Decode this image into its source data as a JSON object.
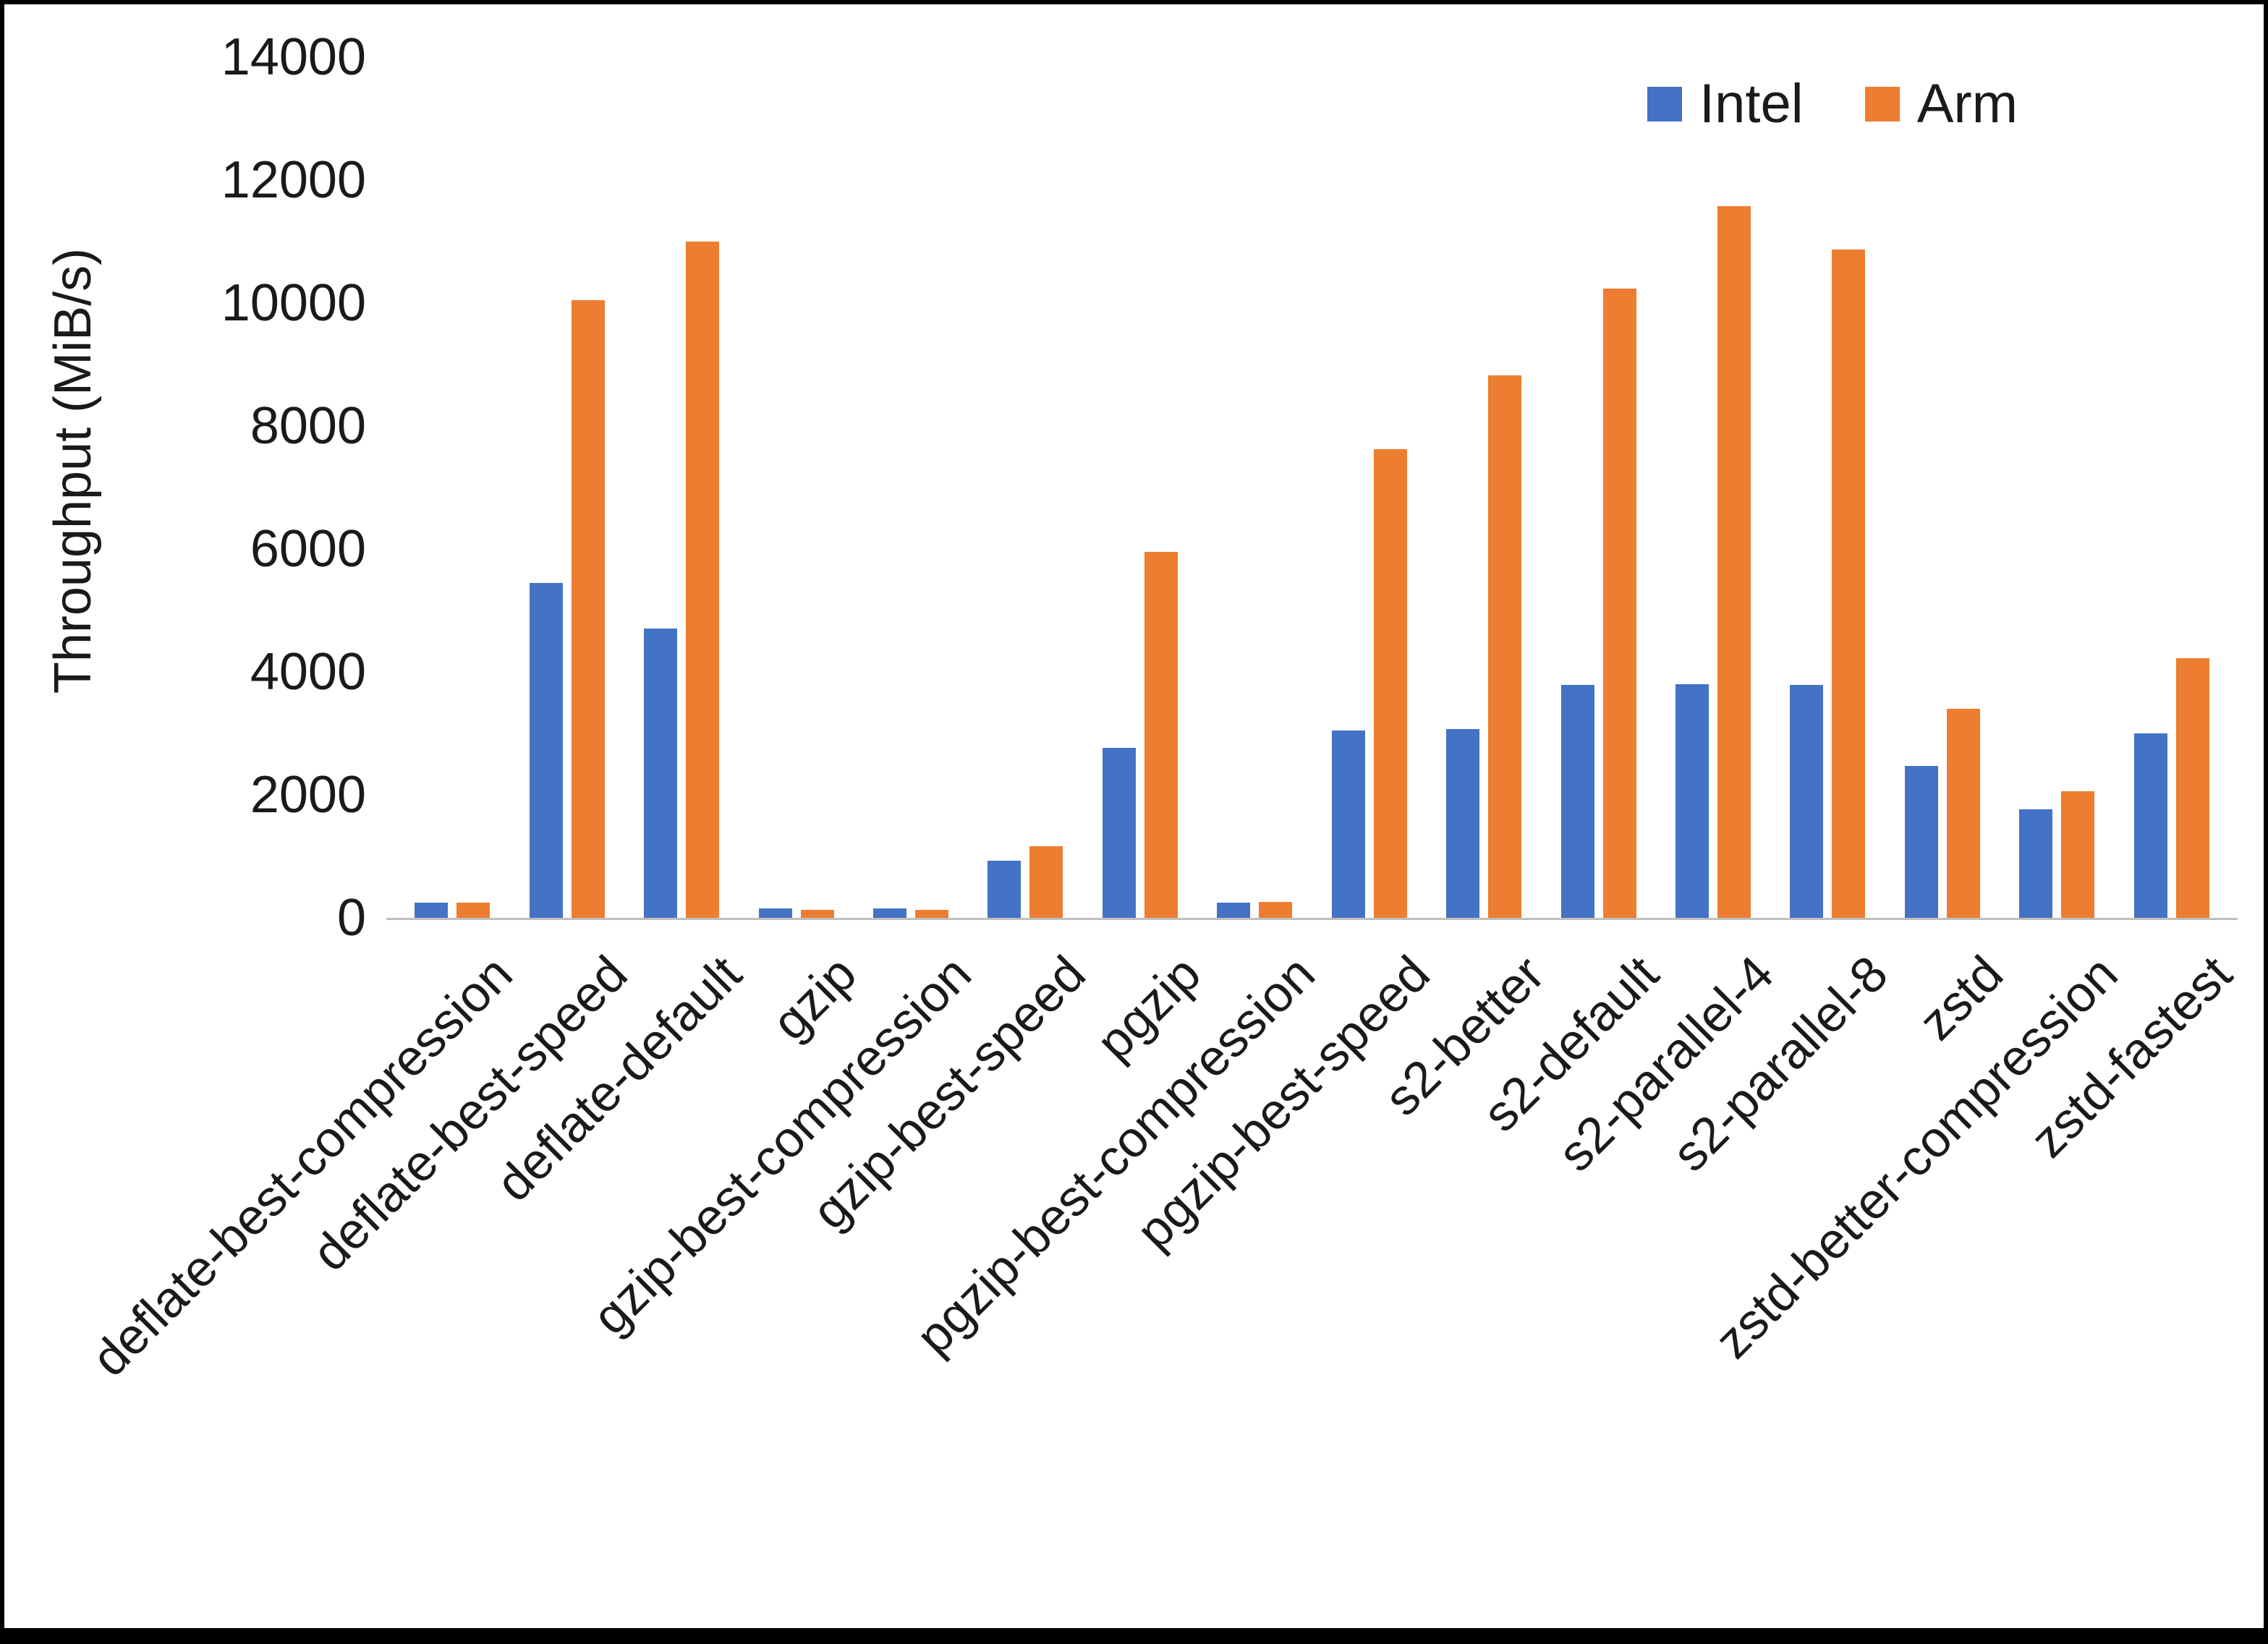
{
  "chart_data": {
    "type": "bar",
    "title": "",
    "xlabel": "",
    "ylabel": "Throughput (MiB/s)",
    "ylim": [
      0,
      14000
    ],
    "ytick_interval": 2000,
    "grid": false,
    "legend_position": "top-right",
    "axis_line_color": "#bfbfbf",
    "categories": [
      "deflate-best-compression",
      "deflate-best-speed",
      "deflate-default",
      "gzip",
      "gzip-best-compression",
      "gzip-best-speed",
      "pgzip",
      "pgzip-best-compression",
      "pgzip-best-speed",
      "s2-better",
      "s2-default",
      "s2-parallel-4",
      "s2-parallel-8",
      "zstd",
      "zstd-better-compression",
      "zstd-fastest"
    ],
    "series": [
      {
        "name": "Intel",
        "color": "#4472C4",
        "values": [
          250,
          5450,
          4700,
          150,
          150,
          930,
          2770,
          250,
          3050,
          3070,
          3790,
          3800,
          3790,
          2470,
          1760,
          3000
        ]
      },
      {
        "name": "Arm",
        "color": "#ED7D31",
        "values": [
          250,
          10050,
          11000,
          130,
          130,
          1170,
          5950,
          260,
          7620,
          8820,
          10240,
          11580,
          10870,
          3400,
          2060,
          4220
        ]
      }
    ]
  }
}
